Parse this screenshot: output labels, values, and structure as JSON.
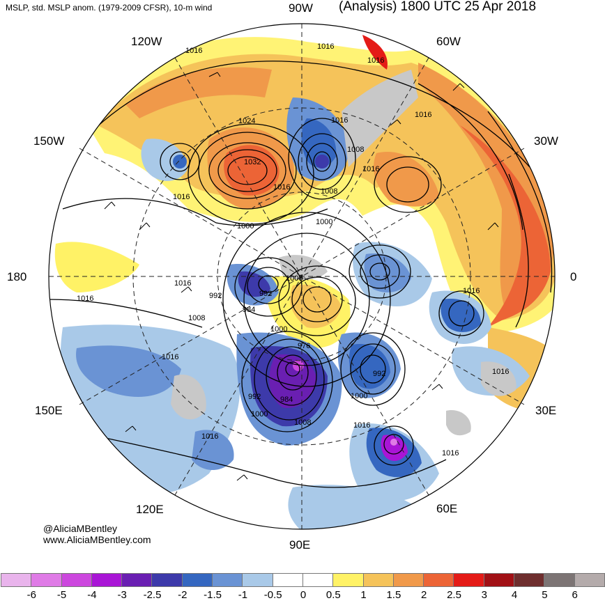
{
  "header": {
    "left_title": "MSLP, std. MSLP anom. (1979-2009 CFSR), 10-m wind",
    "right_title": "(Analysis) 1800 UTC 25 Apr 2018"
  },
  "longitude_labels": {
    "w90": "90W",
    "w60": "60W",
    "w30": "30W",
    "e0": "0",
    "e30": "30E",
    "e60": "60E",
    "e90": "90E",
    "e120": "120E",
    "e150": "150E",
    "d180": "180",
    "w150": "150W",
    "w120": "120W"
  },
  "credit": {
    "handle": "@AliciaMBentley",
    "website": "www.AliciaMBentley.com"
  },
  "isobar_labels": [
    "1016",
    "1016",
    "1016",
    "1016",
    "1016",
    "1008",
    "1016",
    "1024",
    "1032",
    "1016",
    "1016",
    "1008",
    "1000",
    "1000",
    "1016",
    "1008",
    "1016",
    "992",
    "1008",
    "992",
    "984",
    "1000",
    "976",
    "1016",
    "992",
    "1000",
    "992",
    "984",
    "1000",
    "1008",
    "1016",
    "1016",
    "1016",
    "1016",
    "1016"
  ],
  "colorbar": {
    "colors": [
      "#e9b4ec",
      "#df7be6",
      "#cc47de",
      "#a915d6",
      "#6a1fb2",
      "#3d3aaa",
      "#3567c0",
      "#6a93d4",
      "#a9c9e8",
      "#ffffff",
      "#ffffff",
      "#fff266",
      "#f5c35a",
      "#f0994a",
      "#ec6436",
      "#e41b17",
      "#a11015",
      "#6e2e2e",
      "#7c7474",
      "#b4abab"
    ],
    "labels": [
      "-6",
      "-5",
      "-4",
      "-3",
      "-2.5",
      "-2",
      "-1.5",
      "-1",
      "-0.5",
      "0",
      "0.5",
      "1",
      "1.5",
      "2",
      "2.5",
      "3",
      "4",
      "5",
      "6"
    ]
  }
}
